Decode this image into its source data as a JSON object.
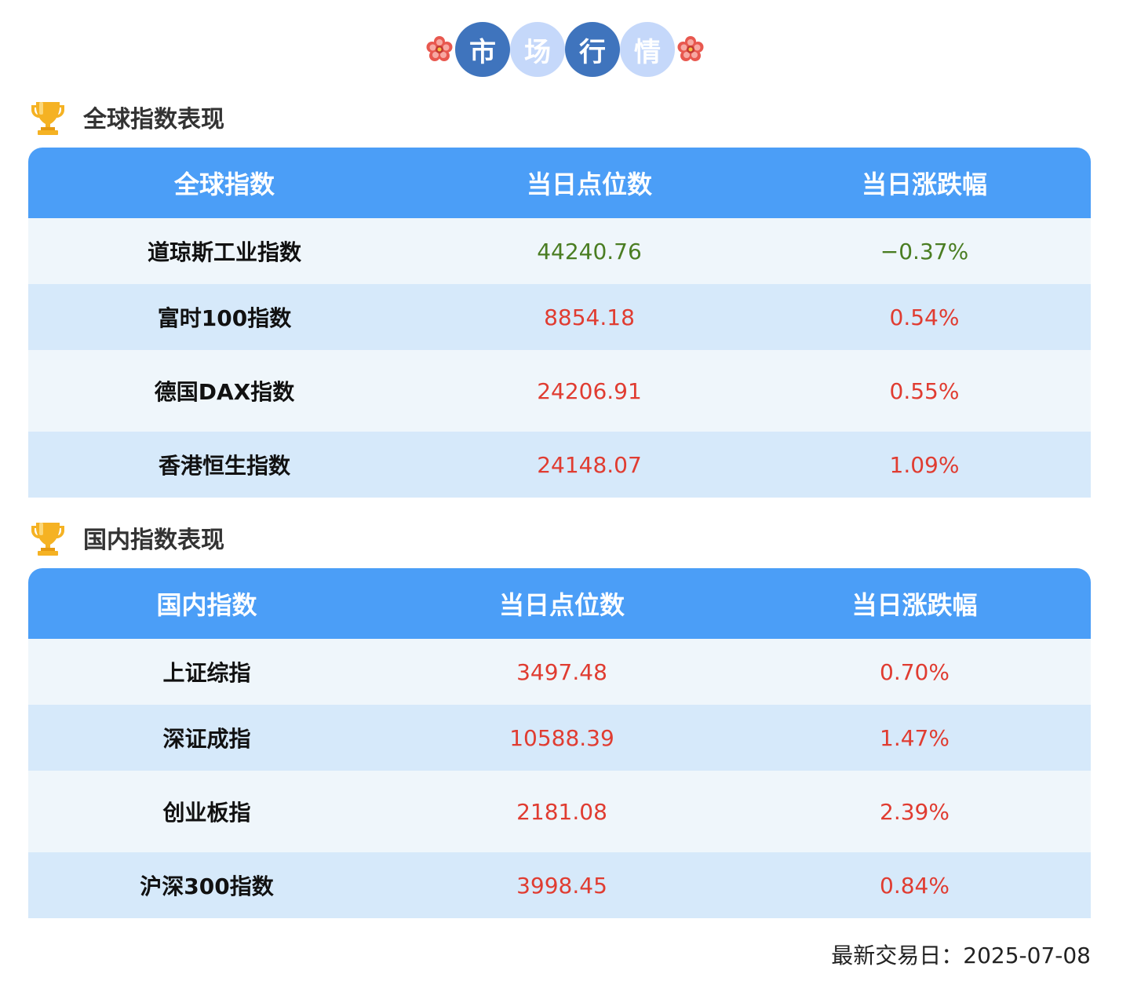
{
  "title": {
    "chars": [
      "市",
      "场",
      "行",
      "情"
    ]
  },
  "global_section": {
    "heading": "全球指数表现",
    "headers": [
      "全球指数",
      "当日点位数",
      "当日涨跌幅"
    ],
    "rows": [
      {
        "name": "道琼斯工业指数",
        "points": "44240.76",
        "change": "−0.37%",
        "direction": "down"
      },
      {
        "name": "富时100指数",
        "points": "8854.18",
        "change": "0.54%",
        "direction": "up"
      },
      {
        "name": "德国DAX指数",
        "points": "24206.91",
        "change": "0.55%",
        "direction": "up"
      },
      {
        "name": "香港恒生指数",
        "points": "24148.07",
        "change": "1.09%",
        "direction": "up"
      }
    ]
  },
  "domestic_section": {
    "heading": "国内指数表现",
    "headers": [
      "国内指数",
      "当日点位数",
      "当日涨跌幅"
    ],
    "rows": [
      {
        "name": "上证综指",
        "points": "3497.48",
        "change": "0.70%",
        "direction": "up"
      },
      {
        "name": "深证成指",
        "points": "10588.39",
        "change": "1.47%",
        "direction": "up"
      },
      {
        "name": "创业板指",
        "points": "2181.08",
        "change": "2.39%",
        "direction": "up"
      },
      {
        "name": "沪深300指数",
        "points": "3998.45",
        "change": "0.84%",
        "direction": "up"
      }
    ]
  },
  "footer": {
    "label": "最新交易日：",
    "date": "2025-07-08"
  },
  "colors": {
    "header_blue": "#4b9ef7",
    "up_red": "#e03c31",
    "down_green": "#4a7d22",
    "title_dark": "#3f74bd",
    "title_light": "#c5d8fa"
  },
  "icons": {
    "flower": "plum-blossom-icon",
    "trophy": "trophy-icon"
  }
}
